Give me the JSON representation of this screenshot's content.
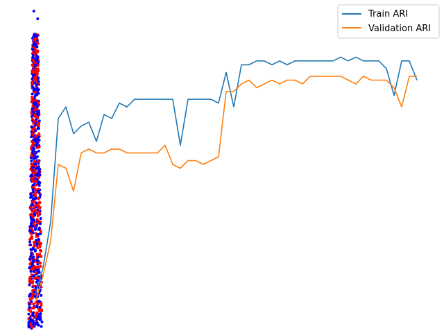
{
  "chart_data": {
    "type": "line",
    "title": "",
    "xlabel": "",
    "ylabel": "",
    "axes_visible": false,
    "grid": false,
    "legend_position": "top-right",
    "xlim": [
      -1,
      51
    ],
    "ylim": [
      0,
      0.86
    ],
    "x": [
      0,
      1,
      2,
      3,
      4,
      5,
      6,
      7,
      8,
      9,
      10,
      11,
      12,
      13,
      14,
      15,
      16,
      17,
      18,
      19,
      20,
      21,
      22,
      23,
      24,
      25,
      26,
      27,
      28,
      29,
      30,
      31,
      32,
      33,
      34,
      35,
      36,
      37,
      38,
      39,
      40,
      41,
      42,
      43,
      44,
      45,
      46,
      47,
      48,
      49,
      50
    ],
    "series": [
      {
        "name": "Train ARI",
        "color": "#1f77b4",
        "values": [
          0.1,
          0.17,
          0.29,
          0.56,
          0.59,
          0.52,
          0.54,
          0.55,
          0.5,
          0.57,
          0.56,
          0.6,
          0.59,
          0.61,
          0.61,
          0.61,
          0.61,
          0.61,
          0.61,
          0.49,
          0.61,
          0.61,
          0.61,
          0.61,
          0.6,
          0.68,
          0.59,
          0.7,
          0.7,
          0.71,
          0.71,
          0.7,
          0.71,
          0.7,
          0.71,
          0.71,
          0.71,
          0.71,
          0.71,
          0.71,
          0.72,
          0.71,
          0.72,
          0.71,
          0.71,
          0.71,
          0.69,
          0.62,
          0.71,
          0.71,
          0.66
        ]
      },
      {
        "name": "Validation ARI",
        "color": "#ff7f0e",
        "values": [
          0.08,
          0.15,
          0.24,
          0.44,
          0.43,
          0.37,
          0.47,
          0.48,
          0.47,
          0.47,
          0.48,
          0.48,
          0.47,
          0.47,
          0.47,
          0.47,
          0.47,
          0.49,
          0.44,
          0.43,
          0.45,
          0.45,
          0.44,
          0.45,
          0.46,
          0.63,
          0.63,
          0.65,
          0.66,
          0.64,
          0.65,
          0.66,
          0.65,
          0.66,
          0.66,
          0.65,
          0.67,
          0.67,
          0.67,
          0.67,
          0.67,
          0.66,
          0.65,
          0.67,
          0.66,
          0.66,
          0.66,
          0.64,
          0.59,
          0.67,
          0.67
        ]
      }
    ],
    "scatter_overlay": {
      "colors": [
        "#0000ff",
        "#ff0000"
      ],
      "x_center": 0,
      "y_range": [
        0,
        0.78
      ]
    }
  }
}
